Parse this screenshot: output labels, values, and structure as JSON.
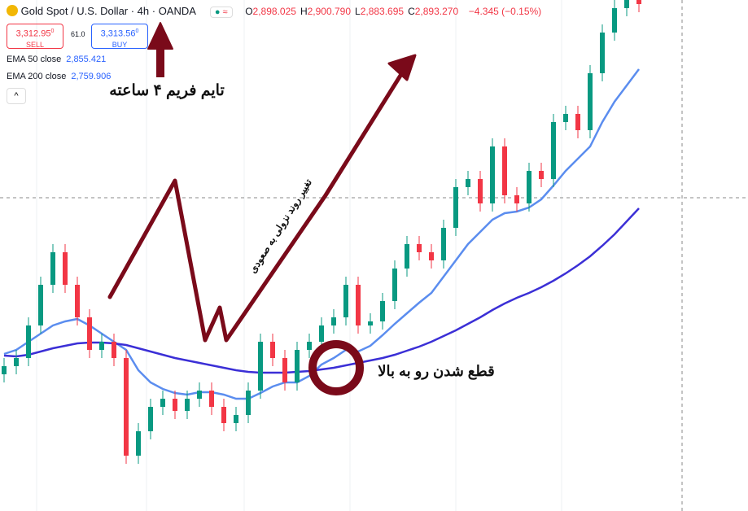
{
  "header": {
    "symbol": "Gold Spot / U.S. Dollar · 4h · OANDA",
    "ohlc": [
      {
        "label": "O",
        "value": "2,898.025"
      },
      {
        "label": "H",
        "value": "2,900.790"
      },
      {
        "label": "L",
        "value": "2,883.695"
      },
      {
        "label": "C",
        "value": "2,893.270"
      }
    ],
    "change": "−4.345 (−0.15%)",
    "sell": {
      "price": "3,312.95",
      "sup": "0",
      "label": "SELL"
    },
    "spread": "61.0",
    "buy": {
      "price": "3,313.56",
      "sup": "0",
      "label": "BUY"
    },
    "indicators": [
      {
        "name": "EMA 50 close",
        "value": "2,855.421"
      },
      {
        "name": "EMA 200 close",
        "value": "2,759.906"
      }
    ]
  },
  "annotations": {
    "timeframe": "تایم فریم ۴ ساعته",
    "trend": "تغییر روند نزولی به صعودی",
    "cross": "قطع شدن رو به بالا"
  },
  "chart_data": {
    "type": "candlestick",
    "ylim": [
      2275,
      2903
    ],
    "up_color": "#089981",
    "down_color": "#f23645",
    "candles": {
      "open": [
        2443,
        2453,
        2463,
        2503,
        2553,
        2593,
        2553,
        2513,
        2473,
        2483,
        2463,
        2343,
        2373,
        2403,
        2413,
        2398,
        2413,
        2423,
        2403,
        2383,
        2393,
        2423,
        2483,
        2463,
        2433,
        2473,
        2483,
        2503,
        2513,
        2553,
        2503,
        2508,
        2533,
        2573,
        2603,
        2593,
        2583,
        2623,
        2673,
        2683,
        2653,
        2723,
        2663,
        2653,
        2693,
        2683,
        2753,
        2763,
        2743,
        2813,
        2863,
        2893,
        2903
      ],
      "high": [
        2463,
        2473,
        2513,
        2563,
        2603,
        2603,
        2563,
        2523,
        2493,
        2493,
        2473,
        2383,
        2413,
        2423,
        2423,
        2423,
        2433,
        2433,
        2413,
        2403,
        2433,
        2493,
        2493,
        2473,
        2483,
        2493,
        2513,
        2523,
        2563,
        2563,
        2518,
        2543,
        2583,
        2613,
        2613,
        2603,
        2633,
        2683,
        2693,
        2693,
        2733,
        2733,
        2673,
        2703,
        2703,
        2763,
        2773,
        2773,
        2823,
        2873,
        2903,
        2913,
        2913
      ],
      "low": [
        2433,
        2443,
        2453,
        2493,
        2543,
        2543,
        2503,
        2463,
        2463,
        2453,
        2333,
        2333,
        2363,
        2393,
        2388,
        2388,
        2403,
        2393,
        2373,
        2373,
        2383,
        2413,
        2453,
        2423,
        2423,
        2463,
        2473,
        2493,
        2503,
        2493,
        2493,
        2498,
        2523,
        2563,
        2583,
        2573,
        2573,
        2613,
        2663,
        2643,
        2643,
        2653,
        2643,
        2643,
        2673,
        2673,
        2743,
        2733,
        2733,
        2803,
        2853,
        2883,
        2888
      ],
      "close": [
        2453,
        2463,
        2503,
        2553,
        2593,
        2553,
        2513,
        2473,
        2483,
        2463,
        2343,
        2373,
        2403,
        2413,
        2398,
        2413,
        2423,
        2403,
        2383,
        2393,
        2423,
        2483,
        2463,
        2433,
        2473,
        2483,
        2503,
        2513,
        2553,
        2503,
        2508,
        2533,
        2573,
        2603,
        2593,
        2583,
        2623,
        2673,
        2683,
        2653,
        2723,
        2663,
        2653,
        2693,
        2683,
        2753,
        2763,
        2743,
        2813,
        2863,
        2893,
        2903,
        2898
      ]
    },
    "lines": [
      {
        "color": "#5b8def",
        "values": [
          2468,
          2473,
          2483,
          2493,
          2503,
          2508,
          2511,
          2503,
          2493,
          2483,
          2473,
          2448,
          2433,
          2425,
          2420,
          2418,
          2421,
          2421,
          2418,
          2413,
          2413,
          2420,
          2428,
          2433,
          2433,
          2441,
          2455,
          2463,
          2473,
          2471,
          2478,
          2491,
          2505,
          2518,
          2531,
          2543,
          2563,
          2583,
          2603,
          2618,
          2633,
          2641,
          2643,
          2648,
          2658,
          2675,
          2693,
          2708,
          2723,
          2753,
          2778,
          2798,
          2818
        ]
      },
      {
        "color": "#3b2fd6",
        "values": [
          2466,
          2465,
          2467,
          2471,
          2475,
          2478,
          2481,
          2482,
          2482,
          2481,
          2479,
          2475,
          2471,
          2467,
          2463,
          2460,
          2457,
          2454,
          2451,
          2448,
          2446,
          2445,
          2445,
          2445,
          2446,
          2447,
          2449,
          2451,
          2454,
          2457,
          2460,
          2463,
          2467,
          2472,
          2477,
          2483,
          2490,
          2497,
          2505,
          2513,
          2522,
          2530,
          2537,
          2543,
          2550,
          2558,
          2567,
          2577,
          2588,
          2601,
          2615,
          2631,
          2647
        ]
      }
    ]
  }
}
